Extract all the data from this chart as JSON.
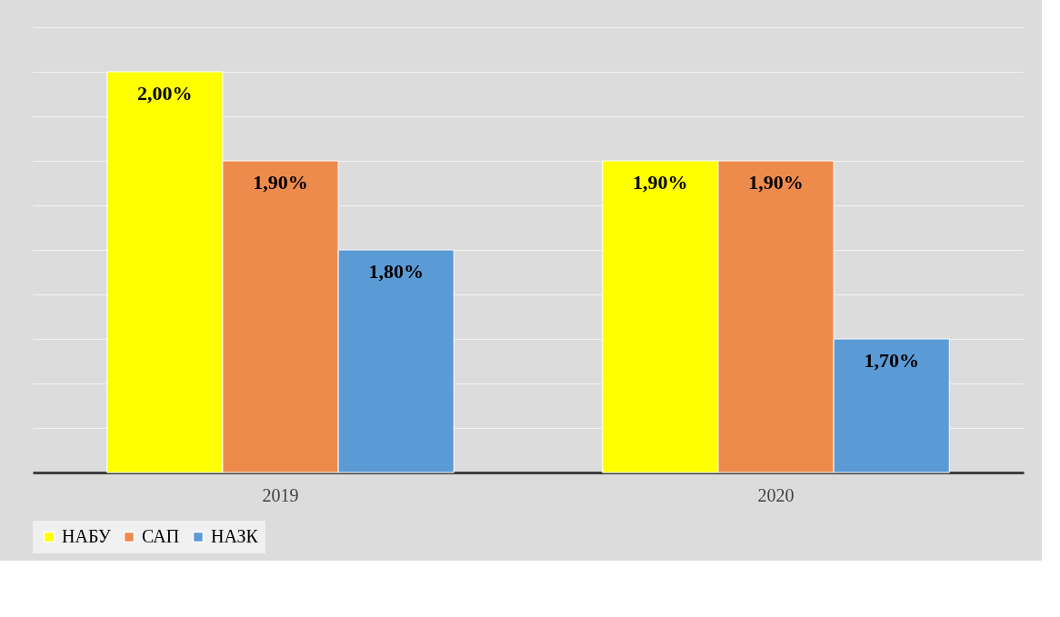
{
  "chart_data": {
    "type": "bar",
    "categories": [
      "2019",
      "2020"
    ],
    "series": [
      {
        "name": "НАБУ",
        "color": "#ffff00",
        "values": [
          2.0,
          1.9
        ],
        "value_labels": [
          "2,00%",
          "1,90%"
        ]
      },
      {
        "name": "САП",
        "color": "#ed8b4d",
        "values": [
          1.9,
          1.9
        ],
        "value_labels": [
          "1,90%",
          "1,90%"
        ]
      },
      {
        "name": "НАЗК",
        "color": "#5b9bd5",
        "values": [
          1.8,
          1.7
        ],
        "value_labels": [
          "1,80%",
          "1,70%"
        ]
      }
    ],
    "relative": false,
    "ylim": [
      1.55,
      2.05
    ],
    "yticks": [
      {
        "value": 1.55,
        "label": null
      },
      {
        "value": 1.6,
        "label": null
      },
      {
        "value": 1.65,
        "label": null
      },
      {
        "value": 1.7,
        "label": null
      },
      {
        "value": 1.75,
        "label": null
      },
      {
        "value": 1.8,
        "label": null
      },
      {
        "value": 1.85,
        "label": null
      },
      {
        "value": 1.9,
        "label": null
      },
      {
        "value": 1.95,
        "label": null
      },
      {
        "value": 2.0,
        "label": null
      },
      {
        "value": 2.05,
        "label": null
      }
    ],
    "grid": "y",
    "tick_labels": "x",
    "legend": "bottom"
  }
}
